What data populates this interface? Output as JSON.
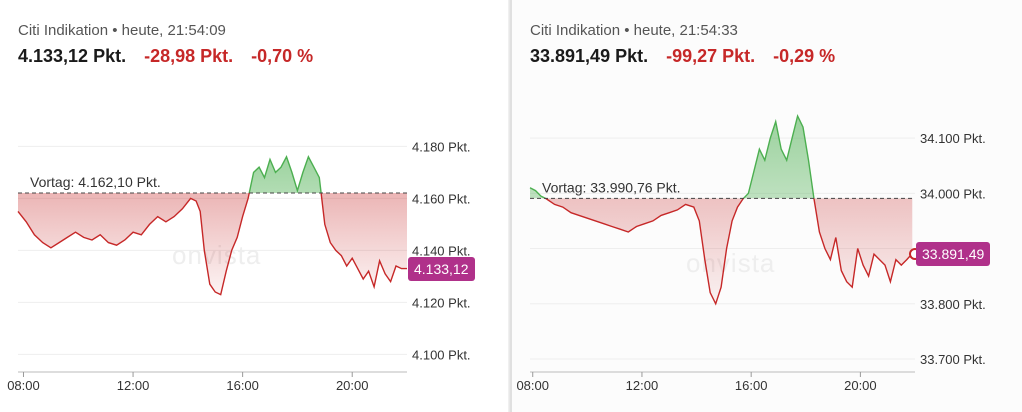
{
  "panels": [
    {
      "subtitle": "Citi Indikation • heute, 21:54:09",
      "price": "4.133,12 Pkt.",
      "change_abs": "-28,98 Pkt.",
      "change_pct": "-0,70 %",
      "vortag_label": "Vortag: 4.162,10 Pkt.",
      "last_badge": "4.133,12",
      "watermark": "onvista",
      "colors": {
        "up": "#4caf50",
        "down": "#c62828",
        "badge": "#b0318a"
      }
    },
    {
      "subtitle": "Citi Indikation • heute, 21:54:33",
      "price": "33.891,49 Pkt.",
      "change_abs": "-99,27 Pkt.",
      "change_pct": "-0,29 %",
      "vortag_label": "Vortag: 33.990,76 Pkt.",
      "last_badge": "33.891,49",
      "watermark": "onvista",
      "colors": {
        "up": "#4caf50",
        "down": "#c62828",
        "badge": "#b0318a"
      }
    }
  ],
  "chart_data": [
    {
      "type": "area",
      "title": "",
      "ylim": [
        4094,
        4194
      ],
      "xlim": [
        7.8,
        22
      ],
      "yticks": [
        4100,
        4120,
        4140,
        4160,
        4180
      ],
      "ytick_labels": [
        "4.100 Pkt.",
        "4.120 Pkt.",
        "4.140 Pkt.",
        "4.160 Pkt.",
        "4.180 Pkt."
      ],
      "xticks": [
        8,
        12,
        16,
        20
      ],
      "xtick_labels": [
        "08:00",
        "12:00",
        "16:00",
        "20:00"
      ],
      "baseline": 4162.1,
      "x": [
        7.8,
        8.1,
        8.4,
        8.7,
        9.0,
        9.3,
        9.6,
        9.9,
        10.2,
        10.5,
        10.8,
        11.1,
        11.4,
        11.7,
        12.0,
        12.3,
        12.6,
        12.9,
        13.2,
        13.5,
        13.8,
        14.1,
        14.3,
        14.45,
        14.6,
        14.8,
        15.0,
        15.2,
        15.4,
        15.6,
        15.8,
        16.0,
        16.2,
        16.4,
        16.6,
        16.8,
        17.0,
        17.2,
        17.4,
        17.6,
        17.8,
        18.0,
        18.2,
        18.4,
        18.6,
        18.8,
        19.0,
        19.2,
        19.4,
        19.6,
        19.8,
        20.0,
        20.2,
        20.4,
        20.6,
        20.8,
        21.0,
        21.2,
        21.4,
        21.6,
        21.8,
        22.0
      ],
      "y": [
        4155,
        4151,
        4146,
        4143,
        4141,
        4143,
        4145,
        4147,
        4145,
        4144,
        4146,
        4143,
        4142,
        4144,
        4147,
        4146,
        4150,
        4153,
        4151,
        4153,
        4156,
        4160,
        4159,
        4155,
        4140,
        4127,
        4124,
        4123,
        4132,
        4140,
        4145,
        4153,
        4160,
        4170,
        4172,
        4168,
        4175,
        4170,
        4172,
        4176,
        4170,
        4163,
        4170,
        4176,
        4172,
        4168,
        4150,
        4143,
        4140,
        4138,
        4134,
        4137,
        4133,
        4129,
        4132,
        4126,
        4136,
        4131,
        4128,
        4134,
        4133,
        4133
      ]
    },
    {
      "type": "area",
      "title": "",
      "ylim": [
        33680,
        34160
      ],
      "xlim": [
        7.9,
        22
      ],
      "yticks": [
        33700,
        33800,
        33900,
        34000,
        34100
      ],
      "ytick_labels": [
        "33.700 Pkt.",
        "33.800 Pkt.",
        "33.900 Pkt.",
        "34.000 Pkt.",
        "34.100 Pkt."
      ],
      "xticks": [
        8,
        12,
        16,
        20
      ],
      "xtick_labels": [
        "08:00",
        "12:00",
        "16:00",
        "20:00"
      ],
      "baseline": 33990.76,
      "x": [
        7.9,
        8.1,
        8.3,
        8.5,
        8.8,
        9.1,
        9.4,
        9.7,
        10.0,
        10.3,
        10.6,
        10.9,
        11.2,
        11.5,
        11.8,
        12.1,
        12.4,
        12.7,
        13.0,
        13.3,
        13.6,
        13.9,
        14.1,
        14.3,
        14.5,
        14.7,
        14.9,
        15.1,
        15.3,
        15.5,
        15.7,
        15.9,
        16.1,
        16.3,
        16.5,
        16.7,
        16.9,
        17.1,
        17.3,
        17.5,
        17.7,
        17.9,
        18.1,
        18.3,
        18.5,
        18.7,
        18.9,
        19.1,
        19.3,
        19.5,
        19.7,
        19.9,
        20.1,
        20.3,
        20.5,
        20.7,
        20.9,
        21.1,
        21.3,
        21.5,
        21.7,
        21.9
      ],
      "y": [
        34010,
        34005,
        33995,
        33990,
        33980,
        33975,
        33965,
        33960,
        33955,
        33950,
        33945,
        33940,
        33935,
        33930,
        33940,
        33945,
        33950,
        33960,
        33965,
        33970,
        33980,
        33975,
        33950,
        33880,
        33820,
        33800,
        33830,
        33900,
        33950,
        33975,
        33990,
        34000,
        34040,
        34080,
        34060,
        34100,
        34130,
        34080,
        34060,
        34100,
        34140,
        34120,
        34060,
        33990,
        33930,
        33900,
        33880,
        33920,
        33860,
        33840,
        33830,
        33900,
        33870,
        33850,
        33890,
        33880,
        33870,
        33840,
        33880,
        33870,
        33880,
        33891
      ]
    }
  ]
}
